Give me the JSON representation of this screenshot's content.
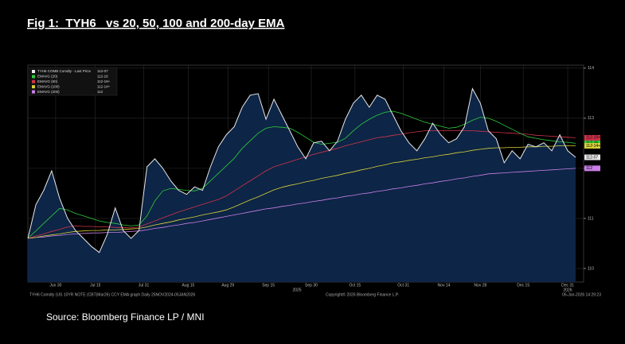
{
  "chart_data": {
    "type": "line",
    "title": "Fig 1:  TYH6   vs 20, 50, 100 and 200-day EMA",
    "source": "Source: Bloomberg Finance LP / MNI",
    "footer_left": "TYH6 Comdty (US 10YR NOTE (CBT)Mar26) CCY EMA graph Daily 25NOV2024-05JAN2026",
    "footer_center": "Copyright© 2026 Bloomberg Finance L.P.",
    "footer_right": "05-Jan-2026 14:29:23",
    "xlim": [
      0,
      69
    ],
    "xticks": [
      {
        "value": 3.5,
        "label": "Jun 30"
      },
      {
        "value": 8.5,
        "label": "Jul 15"
      },
      {
        "value": 14.6,
        "label": "Jul 31"
      },
      {
        "value": 20.2,
        "label": "Aug 15"
      },
      {
        "value": 25.2,
        "label": "Aug 29"
      },
      {
        "value": 30.3,
        "label": "Sep 15"
      },
      {
        "value": 35.7,
        "label": "Sep 30"
      },
      {
        "value": 41.2,
        "label": "Oct 15"
      },
      {
        "value": 47.3,
        "label": "Oct 31"
      },
      {
        "value": 52.4,
        "label": "Nov 14"
      },
      {
        "value": 57,
        "label": "Nov 28"
      },
      {
        "value": 62.4,
        "label": "Dec 15"
      },
      {
        "value": 68,
        "label": "Dec 31"
      }
    ],
    "year_labels": [
      {
        "value": 33.9,
        "label": "2025"
      },
      {
        "value": 68,
        "label": "2026"
      }
    ],
    "ylim": [
      109.73,
      114.06
    ],
    "yticks": [
      110,
      111,
      112,
      113,
      114
    ],
    "grid": true,
    "legend": "top-left",
    "series": [
      {
        "name": "TYH6 COMB Comdty - Last Price",
        "last_label": "112-07",
        "color": "#e8e8e8",
        "area_color": "#0d2546",
        "values": [
          110.6,
          111.27,
          111.56,
          111.95,
          111.4,
          111.0,
          110.76,
          110.6,
          110.44,
          110.32,
          110.68,
          111.21,
          110.76,
          110.6,
          110.76,
          112.03,
          112.19,
          112.0,
          111.75,
          111.56,
          111.48,
          111.63,
          111.56,
          112.03,
          112.43,
          112.67,
          112.83,
          113.22,
          113.46,
          113.49,
          112.98,
          113.38,
          113.06,
          112.75,
          112.43,
          112.19,
          112.51,
          112.54,
          112.35,
          112.54,
          112.98,
          113.3,
          113.46,
          113.22,
          113.46,
          113.38,
          113.06,
          112.75,
          112.51,
          112.35,
          112.59,
          112.9,
          112.67,
          112.51,
          112.59,
          112.83,
          113.59,
          113.3,
          112.75,
          112.59,
          112.11,
          112.35,
          112.19,
          112.48,
          112.43,
          112.51,
          112.35,
          112.67,
          112.35,
          112.22
        ]
      },
      {
        "name": "EMAVG (20)",
        "last_label": "112-16",
        "color": "#2fcc3a",
        "values": [
          110.6,
          110.75,
          110.9,
          111.05,
          111.2,
          111.17,
          111.1,
          111.05,
          111.0,
          110.95,
          110.92,
          110.9,
          110.87,
          110.85,
          110.87,
          111.05,
          111.35,
          111.55,
          111.6,
          111.58,
          111.56,
          111.55,
          111.6,
          111.75,
          111.9,
          112.05,
          112.2,
          112.4,
          112.55,
          112.7,
          112.8,
          112.83,
          112.82,
          112.8,
          112.72,
          112.62,
          112.52,
          112.48,
          112.5,
          112.52,
          112.6,
          112.75,
          112.88,
          112.98,
          113.06,
          113.12,
          113.14,
          113.1,
          113.04,
          112.98,
          112.92,
          112.88,
          112.84,
          112.8,
          112.82,
          112.88,
          112.96,
          113.02,
          113.0,
          112.94,
          112.86,
          112.78,
          112.7,
          112.63,
          112.6,
          112.57,
          112.55,
          112.53,
          112.52,
          112.5
        ]
      },
      {
        "name": "EMAVG (50)",
        "last_label": "112-19+",
        "color": "#d2344a",
        "values": [
          110.6,
          110.65,
          110.69,
          110.74,
          110.78,
          110.83,
          110.85,
          110.84,
          110.84,
          110.83,
          110.83,
          110.82,
          110.82,
          110.81,
          110.83,
          110.89,
          110.95,
          111.01,
          111.07,
          111.13,
          111.18,
          111.23,
          111.28,
          111.33,
          111.38,
          111.45,
          111.55,
          111.65,
          111.75,
          111.85,
          111.95,
          112.03,
          112.08,
          112.13,
          112.18,
          112.23,
          112.28,
          112.32,
          112.36,
          112.4,
          112.45,
          112.49,
          112.53,
          112.57,
          112.61,
          112.63,
          112.66,
          112.68,
          112.71,
          112.73,
          112.75,
          112.75,
          112.75,
          112.75,
          112.75,
          112.75,
          112.75,
          112.74,
          112.73,
          112.72,
          112.71,
          112.7,
          112.69,
          112.68,
          112.66,
          112.65,
          112.64,
          112.63,
          112.62,
          112.61
        ]
      },
      {
        "name": "EMAVG (100)",
        "last_label": "112-14+",
        "color": "#d8d23a",
        "values": [
          110.6,
          110.62,
          110.65,
          110.67,
          110.69,
          110.72,
          110.74,
          110.75,
          110.76,
          110.76,
          110.77,
          110.77,
          110.78,
          110.79,
          110.8,
          110.83,
          110.87,
          110.9,
          110.93,
          110.97,
          111.0,
          111.03,
          111.07,
          111.1,
          111.13,
          111.17,
          111.23,
          111.3,
          111.37,
          111.43,
          111.5,
          111.57,
          111.62,
          111.66,
          111.69,
          111.73,
          111.76,
          111.8,
          111.83,
          111.86,
          111.9,
          111.93,
          111.97,
          112.0,
          112.04,
          112.07,
          112.11,
          112.13,
          112.16,
          112.18,
          112.21,
          112.23,
          112.26,
          112.28,
          112.31,
          112.33,
          112.36,
          112.38,
          112.4,
          112.41,
          112.41,
          112.42,
          112.42,
          112.43,
          112.43,
          112.44,
          112.44,
          112.45,
          112.45,
          112.45
        ]
      },
      {
        "name": "EMAVG (200)",
        "last_label": "112",
        "color": "#c97fe6",
        "values": [
          110.6,
          110.62,
          110.63,
          110.65,
          110.66,
          110.68,
          110.69,
          110.7,
          110.71,
          110.71,
          110.72,
          110.72,
          110.73,
          110.74,
          110.75,
          110.77,
          110.8,
          110.82,
          110.85,
          110.87,
          110.9,
          110.92,
          110.95,
          110.98,
          111.01,
          111.04,
          111.07,
          111.1,
          111.13,
          111.16,
          111.19,
          111.21,
          111.24,
          111.26,
          111.29,
          111.31,
          111.34,
          111.36,
          111.39,
          111.41,
          111.44,
          111.46,
          111.49,
          111.51,
          111.54,
          111.56,
          111.59,
          111.61,
          111.64,
          111.66,
          111.69,
          111.71,
          111.74,
          111.76,
          111.79,
          111.81,
          111.84,
          111.86,
          111.89,
          111.9,
          111.91,
          111.92,
          111.93,
          111.94,
          111.95,
          111.96,
          111.97,
          111.98,
          111.99,
          112.0
        ]
      }
    ]
  }
}
